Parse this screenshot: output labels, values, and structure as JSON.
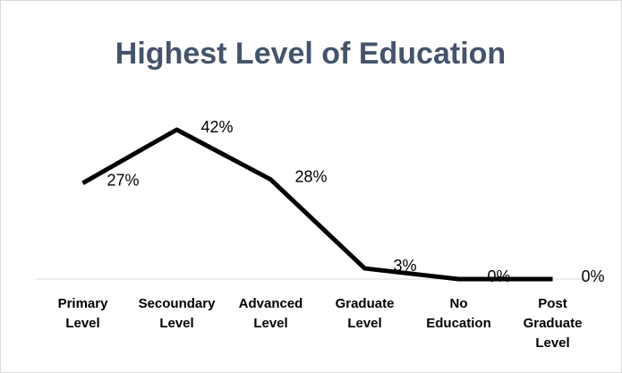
{
  "chart_data": {
    "type": "line",
    "title": "Highest Level of Education",
    "categories": [
      "Primary Level",
      "Secoundary Level",
      "Advanced Level",
      "Graduate Level",
      "No Education",
      "Post Graduate Level"
    ],
    "values": [
      27,
      42,
      28,
      3,
      0,
      0
    ],
    "value_labels": [
      "27%",
      "42%",
      "28%",
      "3%",
      "0%",
      "0%"
    ],
    "color": "#000000"
  }
}
